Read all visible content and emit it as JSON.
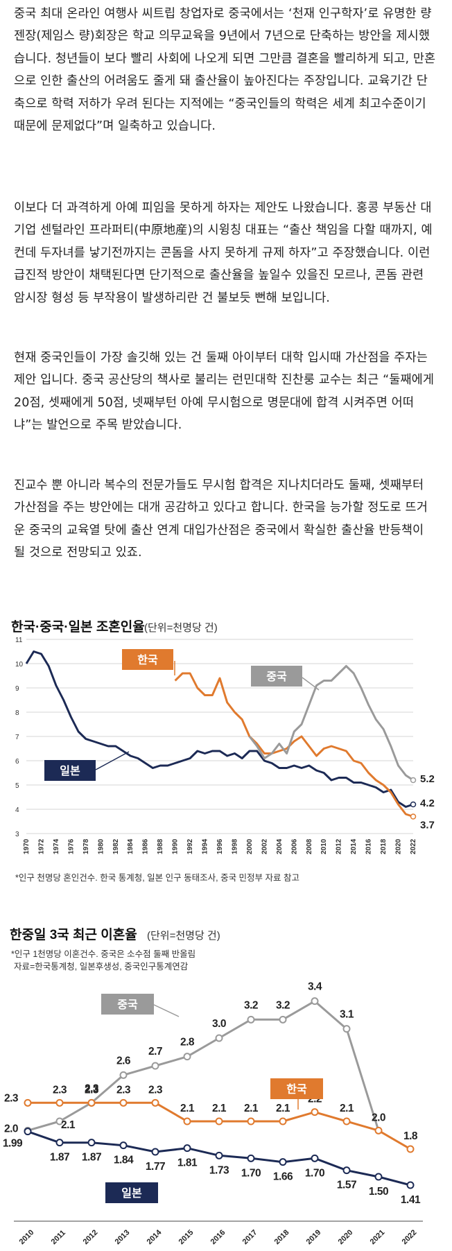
{
  "article": {
    "paragraphs": [
      "중국 최대 온라인 여행사 씨트립 창업자로 중국에서는 ‘천재 인구학자’로 유명한 량젠장(제임스 량)회장은 학교 의무교육을 9년에서 7년으로 단축하는 방안을 제시했습니다. 청년들이 보다 빨리 사회에 나오게 되면 그만큼 결혼을 빨리하게 되고, 만혼으로 인한 출산의 어려움도 줄게 돼 출산율이 높아진다는 주장입니다. 교육기간 단축으로 학력 저하가 우려 된다는 지적에는 “중국인들의 학력은 세계 최고수준이기 때문에 문제없다”며 일축하고 있습니다.",
      "이보다 더 과격하게 아예 피임을 못하게 하자는 제안도 나왔습니다. 홍콩 부동산 대기업 센털라인 프라퍼티(中原地産)의 시윙칭 대표는 “출산 책임을 다할 때까지, 예컨데 두자녀를 낳기전까지는 콘돔을 사지 못하게 규제 하자”고 주장했습니다. 이런 급진적 방안이 채택된다면 단기적으로 출산율을 높일수 있을진 모르나, 콘돔 관련 암시장 형성 등 부작용이 발생하리란 건 불보듯 뻔해 보입니다.",
      "현재 중국인들이 가장 솔깃해 있는 건 둘째 아이부터 대학 입시때 가산점을 주자는 제안 입니다. 중국 공산당의 책사로 불리는 런민대학 진찬룽 교수는 최근 “둘째에게 20점, 셋째에게 50점, 넷째부턴 아예 무시험으로 명문대에 합격 시켜주면 어떠냐”는 발언으로 주목 받았습니다.",
      "진교수 뿐 아니라 복수의 전문가들도 무시험 합격은 지나치더라도 둘째, 셋째부터 가산점을 주는 방안에는 대개 공감하고 있다고 합니다. 한국을 능가할 정도로 뜨거운 중국의 교육열 탓에 출산 연계 대입가산점은 중국에서 확실한 출산율 반등책이 될 것으로 전망되고 있죠."
    ]
  },
  "colors": {
    "japan": "#1c2a55",
    "korea": "#e07a2e",
    "china": "#9a9a9a",
    "grid": "#d6d6d6",
    "axis_text": "#333333"
  },
  "chart_data": [
    {
      "type": "line",
      "title": "한국·중국·일본 조혼인율",
      "unit": "(단위=천명당 건)",
      "footnote": "*인구 천명당 혼인건수. 한국 통계청, 일본 인구 동태조사, 중국 민정부 자료 참고",
      "ylim": [
        3,
        11
      ],
      "yticks": [
        "3",
        "4",
        "5",
        "6",
        "7",
        "8",
        "9",
        "10",
        "11"
      ],
      "xticks": [
        "1970",
        "1972",
        "1974",
        "1976",
        "1978",
        "1980",
        "1982",
        "1984",
        "1986",
        "1988",
        "1990",
        "1992",
        "1994",
        "1996",
        "1998",
        "2000",
        "2002",
        "2004",
        "2006",
        "2008",
        "2010",
        "2012",
        "2014",
        "2016",
        "2018",
        "2020",
        "2022"
      ],
      "xlim": [
        1970,
        2022
      ],
      "grid": true,
      "series": [
        {
          "name": "일본",
          "color_key": "japan",
          "end_label": "4.2",
          "x": [
            1970,
            1971,
            1972,
            1973,
            1974,
            1975,
            1976,
            1977,
            1978,
            1979,
            1980,
            1981,
            1982,
            1983,
            1984,
            1985,
            1986,
            1987,
            1988,
            1989,
            1990,
            1991,
            1992,
            1993,
            1994,
            1995,
            1996,
            1997,
            1998,
            1999,
            2000,
            2001,
            2002,
            2003,
            2004,
            2005,
            2006,
            2007,
            2008,
            2009,
            2010,
            2011,
            2012,
            2013,
            2014,
            2015,
            2016,
            2017,
            2018,
            2019,
            2020,
            2021,
            2022
          ],
          "values": [
            10.0,
            10.5,
            10.4,
            9.9,
            9.1,
            8.5,
            7.8,
            7.2,
            6.9,
            6.8,
            6.7,
            6.6,
            6.6,
            6.4,
            6.2,
            6.1,
            5.9,
            5.7,
            5.8,
            5.8,
            5.9,
            6.0,
            6.1,
            6.4,
            6.3,
            6.4,
            6.4,
            6.2,
            6.3,
            6.1,
            6.4,
            6.4,
            6.0,
            5.9,
            5.7,
            5.7,
            5.8,
            5.7,
            5.8,
            5.6,
            5.5,
            5.2,
            5.3,
            5.3,
            5.1,
            5.1,
            5.0,
            4.9,
            4.7,
            4.8,
            4.3,
            4.1,
            4.2
          ]
        },
        {
          "name": "한국",
          "color_key": "korea",
          "end_label": "3.7",
          "x": [
            1990,
            1991,
            1992,
            1993,
            1994,
            1995,
            1996,
            1997,
            1998,
            1999,
            2000,
            2001,
            2002,
            2003,
            2004,
            2005,
            2006,
            2007,
            2008,
            2009,
            2010,
            2011,
            2012,
            2013,
            2014,
            2015,
            2016,
            2017,
            2018,
            2019,
            2020,
            2021,
            2022
          ],
          "values": [
            9.3,
            9.6,
            9.6,
            9.0,
            8.7,
            8.7,
            9.4,
            8.4,
            8.0,
            7.7,
            7.0,
            6.7,
            6.3,
            6.3,
            6.4,
            6.5,
            6.8,
            7.0,
            6.6,
            6.2,
            6.5,
            6.6,
            6.5,
            6.4,
            6.0,
            5.9,
            5.5,
            5.2,
            5.0,
            4.7,
            4.2,
            3.8,
            3.7
          ]
        },
        {
          "name": "중국",
          "color_key": "china",
          "end_label": "5.2",
          "x": [
            2000,
            2001,
            2002,
            2003,
            2004,
            2005,
            2006,
            2007,
            2008,
            2009,
            2010,
            2011,
            2012,
            2013,
            2014,
            2015,
            2016,
            2017,
            2018,
            2019,
            2020,
            2021,
            2022
          ],
          "values": [
            7.0,
            6.6,
            6.1,
            6.3,
            6.7,
            6.3,
            7.2,
            7.5,
            8.3,
            9.1,
            9.3,
            9.3,
            9.6,
            9.9,
            9.6,
            9.0,
            8.3,
            7.7,
            7.3,
            6.6,
            5.8,
            5.4,
            5.2
          ]
        }
      ]
    },
    {
      "type": "line",
      "title": "한중일 3국 최근 이혼율",
      "unit": "(단위=천명당 건)",
      "notes": [
        "*인구 1천명당 이혼건수. 중국은 소수점 둘째 반올림",
        "자료=한국통계청, 일본후생성, 중국인구통계연감"
      ],
      "categories": [
        "2010",
        "2011",
        "2012",
        "2013",
        "2014",
        "2015",
        "2016",
        "2017",
        "2018",
        "2019",
        "2020",
        "2021",
        "2022"
      ],
      "ylim": [
        1.2,
        3.6
      ],
      "grid": false,
      "series": [
        {
          "name": "중국",
          "color_key": "china",
          "values": [
            2.0,
            2.1,
            2.3,
            2.6,
            2.7,
            2.8,
            3.0,
            3.2,
            3.2,
            3.4,
            3.1,
            null,
            null
          ],
          "labels": [
            "2.0",
            "2.1",
            "2.3",
            "2.6",
            "2.7",
            "2.8",
            "3.0",
            "3.2",
            "3.2",
            "3.4",
            "3.1",
            "",
            ""
          ]
        },
        {
          "name": "한국",
          "color_key": "korea",
          "values": [
            2.3,
            2.3,
            2.3,
            2.3,
            2.3,
            2.1,
            2.1,
            2.1,
            2.1,
            2.2,
            2.1,
            2.0,
            1.8
          ],
          "labels": [
            "2.3",
            "2.3",
            "2.3",
            "2.3",
            "2.3",
            "2.1",
            "2.1",
            "2.1",
            "2.1",
            "2.2",
            "2.1",
            "2.0",
            "1.8"
          ]
        },
        {
          "name": "일본",
          "color_key": "japan",
          "values": [
            1.99,
            1.87,
            1.87,
            1.84,
            1.77,
            1.81,
            1.73,
            1.7,
            1.66,
            1.7,
            1.57,
            1.5,
            1.41
          ],
          "labels": [
            "1.99",
            "1.87",
            "1.87",
            "1.84",
            "1.77",
            "1.81",
            "1.73",
            "1.70",
            "1.66",
            "1.70",
            "1.57",
            "1.50",
            "1.41"
          ]
        }
      ]
    }
  ]
}
